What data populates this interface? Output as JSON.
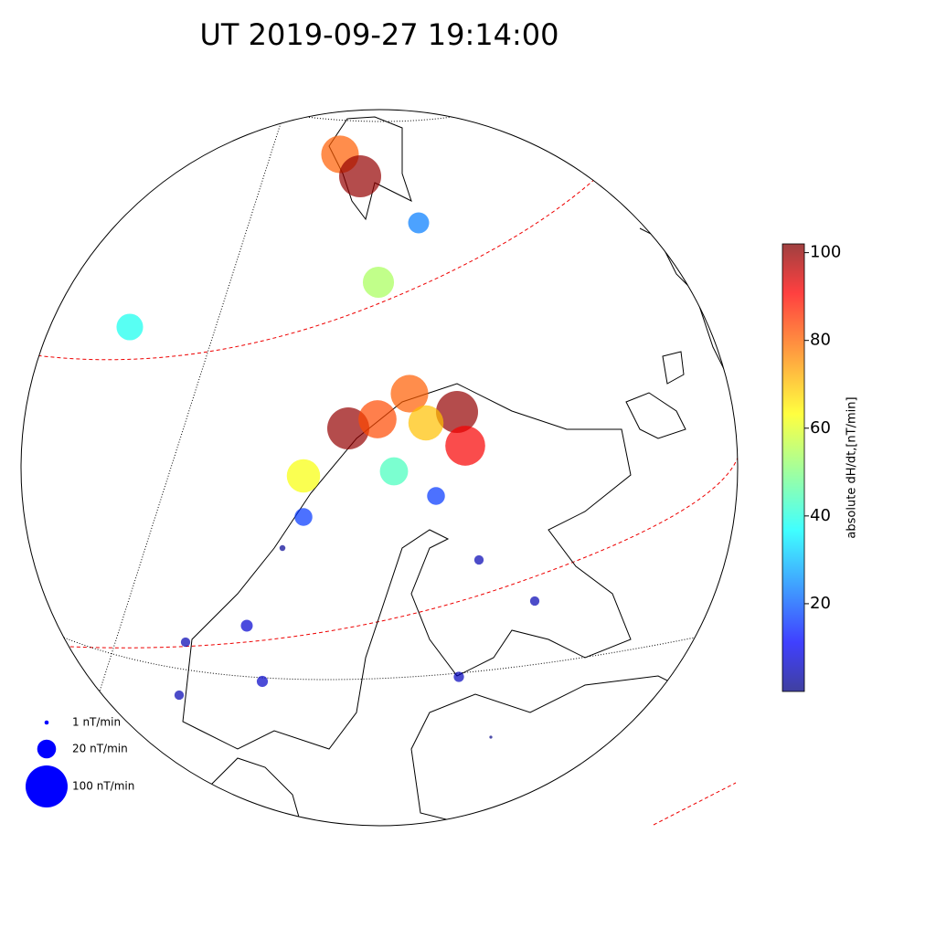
{
  "chart_data": {
    "type": "scatter",
    "title": "UT 2019-09-27 19:14:00",
    "values": [
      80,
      100,
      25,
      55,
      40,
      80,
      100,
      100,
      82,
      70,
      90,
      63,
      45,
      18,
      18,
      2,
      5,
      5,
      8,
      5,
      7,
      6,
      5,
      0.5
    ],
    "colorbar": {
      "label": "absolute dH/dt,[nT/min]",
      "lim": [
        0,
        102
      ],
      "ticks": [
        20,
        40,
        60,
        80,
        100
      ],
      "colormap": "jet",
      "alpha": 0.7
    },
    "size_legend": {
      "values": [
        1,
        20,
        100
      ],
      "value_labels": [
        "1 nT/min",
        "20 nT/min",
        "100 nT/min"
      ],
      "color": "#0000ff"
    }
  }
}
